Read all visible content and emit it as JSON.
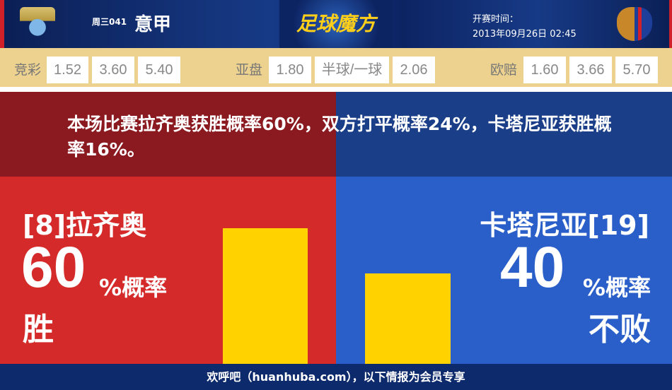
{
  "header": {
    "weekday_code": "周三041",
    "league": "意甲",
    "brand": "足球魔方",
    "kickoff_label": "开赛时间：",
    "kickoff_time": "2013年09月26日 02:45",
    "home_logo": "lazio-crest-icon",
    "away_logo": "catania-crest-icon"
  },
  "odds": {
    "jingcai": {
      "label": "竞彩",
      "values": [
        "1.52",
        "3.60",
        "5.40"
      ]
    },
    "yapan": {
      "label": "亚盘",
      "values": [
        "1.80",
        "半球/一球",
        "2.06"
      ]
    },
    "oupei": {
      "label": "欧赔",
      "values": [
        "1.60",
        "3.66",
        "5.70"
      ]
    }
  },
  "summary": "本场比赛拉齐奥获胜概率60%，双方打平概率24%，卡塔尼亚获胜概率16%。",
  "home": {
    "team": "[8]拉齐奥",
    "percent": "60",
    "suffix": "%概率",
    "outcome": "胜",
    "probability": 60
  },
  "away": {
    "team": "卡塔尼亚[19]",
    "percent": "40",
    "suffix": "%概率",
    "outcome": "不败",
    "probability": 40
  },
  "footer": "欢呼吧（huanhuba.com），以下情报为会员专享",
  "colors": {
    "home": "#d42a2a",
    "away": "#2a5fc9",
    "bar": "#ffd200"
  }
}
